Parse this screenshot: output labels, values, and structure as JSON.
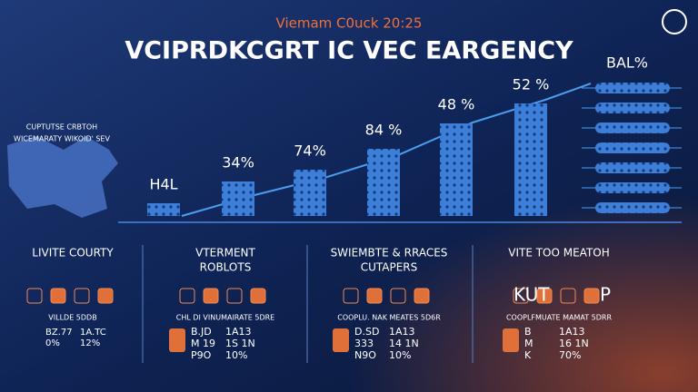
{
  "header": {
    "subtitle": "Viemam C0uck 20:25",
    "title": "VCIPRDKCGRT IC VEC EARGENCY"
  },
  "left_note": [
    "CUPTUTSE CRBTOH",
    "WICEMARATY WIKOID' SEV"
  ],
  "bar_labels": [
    "H4L",
    "34%",
    "74%",
    "84 %",
    "48 %",
    "52 %"
  ],
  "right_label": "BAL%",
  "sections": [
    {
      "title": [
        "LIVITE COURTY"
      ],
      "caption": "VILLDE 5DDB",
      "stats": [
        "BZ.77",
        "1A.TC",
        "0%",
        "12%"
      ]
    },
    {
      "title": [
        "VTERMENT",
        "ROBLOTS"
      ],
      "caption": "CHL DI VINUMAIRATE 5DRE",
      "stats": [
        "B.JD",
        "1A13",
        "M 19",
        "1S 1N",
        "P9O",
        "10%"
      ]
    },
    {
      "title": [
        "SWIEMBTE & RRACES",
        "CUTAPERS"
      ],
      "caption": "COOPLU. NAK MEATES 5D6R",
      "stats": [
        "D.SD",
        "1A13",
        "333",
        "14 1N",
        "N9O",
        "10%"
      ]
    },
    {
      "title": [
        "VITE TOO MEATOH"
      ],
      "caption": "COOPLFMUATE MAMAT 5DRR",
      "stats": [
        "B",
        "1A13",
        "M",
        "16 1N",
        "K",
        "70%"
      ],
      "marks": [
        "KUT",
        "P"
      ]
    }
  ]
}
